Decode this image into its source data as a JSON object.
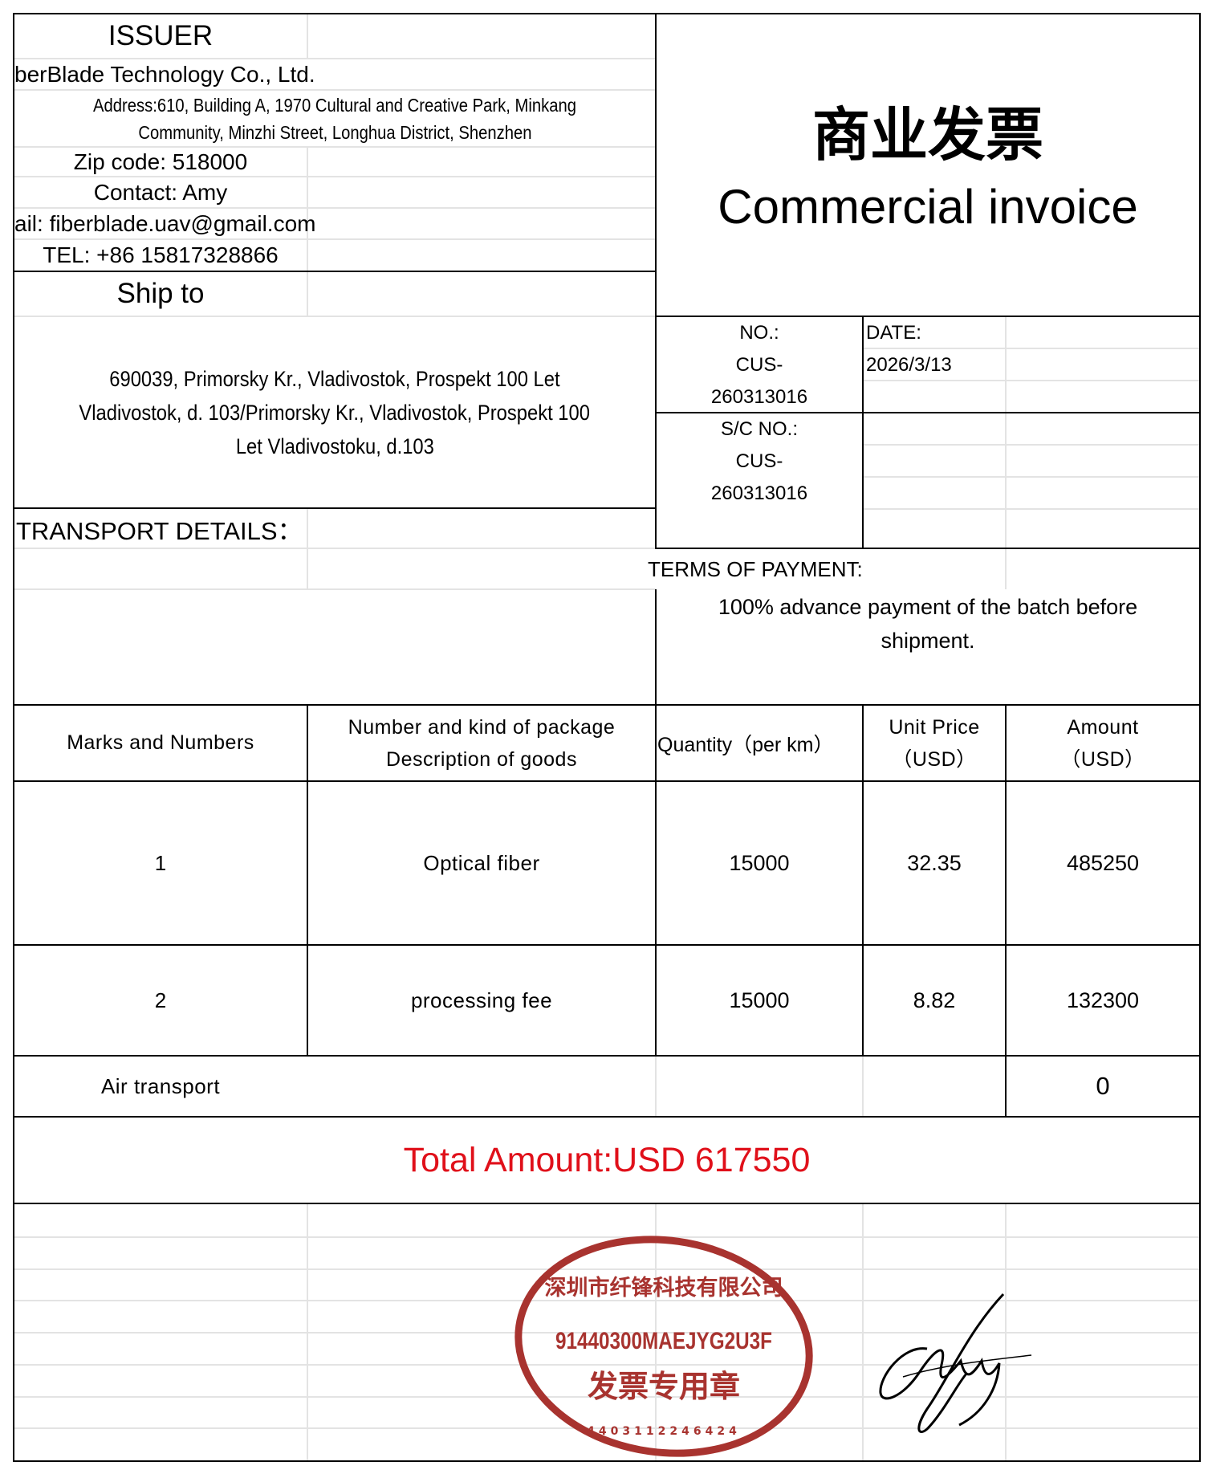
{
  "issuer": {
    "heading": "ISSUER",
    "company": "berBlade Technology Co., Ltd.",
    "address_line1": "Address:610, Building A, 1970 Cultural and Creative Park, Minkang",
    "address_line2": "Community, Minzhi Street, Longhua District, Shenzhen",
    "zip": "Zip code: 518000",
    "contact": "Contact: Amy",
    "email": "ail: fiberblade.uav@gmail.com",
    "tel": "TEL: +86 15817328866"
  },
  "ship_to": {
    "heading": "Ship to",
    "line1": "690039, Primorsky Kr., Vladivostok, Prospekt 100 Let",
    "line2": "Vladivostok, d. 103/Primorsky Kr., Vladivostok, Prospekt 100",
    "line3": "Let Vladivostoku, d.103"
  },
  "transport": {
    "heading": "TRANSPORT DETAILS："
  },
  "title": {
    "chinese": "商业发票",
    "english": "Commercial invoice"
  },
  "meta": {
    "no_label": "NO.:",
    "no_value_1": "CUS-",
    "no_value_2": "260313016",
    "date_label": "DATE:",
    "date_value": "2026/3/13",
    "sc_label": "S/C NO.:",
    "sc_value_1": "CUS-",
    "sc_value_2": "260313016"
  },
  "payment": {
    "label": "TERMS OF PAYMENT:",
    "line1": "100% advance payment of the batch before",
    "line2": "shipment."
  },
  "table": {
    "headers": {
      "marks": "Marks and Numbers",
      "package_1": "Number and kind of package",
      "package_2": "Description of goods",
      "quantity": "Quantity（per km）",
      "unit_price_1": "Unit Price",
      "unit_price_2": "（USD）",
      "amount_1": "Amount",
      "amount_2": "（USD）"
    },
    "rows": [
      {
        "mark": "1",
        "description": "Optical fiber",
        "quantity": "15000",
        "unit_price": "32.35",
        "amount": "485250"
      },
      {
        "mark": "2",
        "description": "processing fee",
        "quantity": "15000",
        "unit_price": "8.82",
        "amount": "132300"
      }
    ],
    "air": {
      "label": "Air transport",
      "amount": "0"
    },
    "total": "Total Amount:USD 617550"
  },
  "stamp": {
    "outer_text": "深圳市纤锋科技有限公司",
    "code": "91440300MAEJYG2U3F",
    "inner_text": "发票专用章",
    "number": "4403112246424"
  },
  "signature": {
    "name": "Amy"
  },
  "colors": {
    "total": "#e0101a",
    "stamp": "#a8332f",
    "grid": "#e3e3e3"
  }
}
